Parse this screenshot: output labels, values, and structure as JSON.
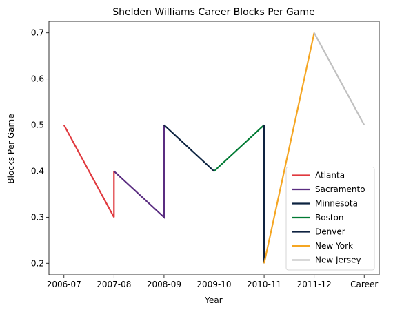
{
  "chart_data": {
    "type": "line",
    "title": "Shelden Williams Career Blocks Per Game",
    "xlabel": "Year",
    "ylabel": "Blocks Per Game",
    "categories": [
      "2006-07",
      "2007-08",
      "2008-09",
      "2009-10",
      "2010-11",
      "2011-12",
      "Career"
    ],
    "yticks": [
      "0.2",
      "0.3",
      "0.4",
      "0.5",
      "0.6",
      "0.7"
    ],
    "ylim": [
      0.175,
      0.725
    ],
    "grid": false,
    "legend_position": "lower-right",
    "series": [
      {
        "name": "Atlanta",
        "color": "#e0393e",
        "points": [
          [
            0,
            0.5
          ],
          [
            1,
            0.3
          ],
          [
            1,
            0.4
          ]
        ]
      },
      {
        "name": "Sacramento",
        "color": "#5a2d81",
        "points": [
          [
            1,
            0.4
          ],
          [
            2,
            0.3
          ],
          [
            2,
            0.5
          ]
        ]
      },
      {
        "name": "Minnesota",
        "color": "#0c2340",
        "points": [
          [
            2,
            0.5
          ],
          [
            3,
            0.4
          ]
        ]
      },
      {
        "name": "Boston",
        "color": "#007a33",
        "points": [
          [
            3,
            0.4
          ],
          [
            4,
            0.5
          ]
        ]
      },
      {
        "name": "Denver",
        "color": "#0e2240",
        "points": [
          [
            4,
            0.5
          ],
          [
            4,
            0.2
          ]
        ]
      },
      {
        "name": "New York",
        "color": "#f5a623",
        "points": [
          [
            4,
            0.2
          ],
          [
            5,
            0.7
          ]
        ]
      },
      {
        "name": "New Jersey",
        "color": "#c0c0c0",
        "points": [
          [
            5,
            0.7
          ],
          [
            6,
            0.5
          ]
        ]
      }
    ]
  }
}
